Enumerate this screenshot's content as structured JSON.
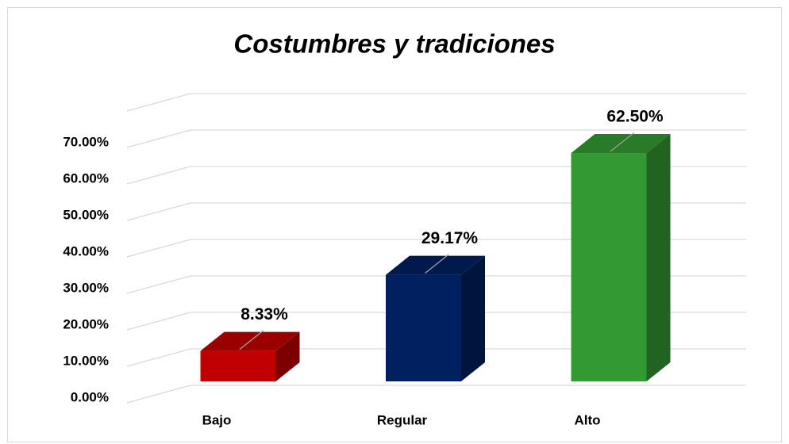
{
  "chart_data": {
    "type": "bar3d",
    "title": "Costumbres y tradiciones",
    "categories": [
      "Bajo",
      "Regular",
      "Alto"
    ],
    "values": [
      8.33,
      29.17,
      62.5
    ],
    "value_labels": [
      "8.33%",
      "29.17%",
      "62.50%"
    ],
    "colors": [
      "#c00000",
      "#002060",
      "#339933"
    ],
    "ylim": [
      0,
      80
    ],
    "yticks": [
      {
        "value": 0,
        "label": "0.00%"
      },
      {
        "value": 10,
        "label": "10.00%"
      },
      {
        "value": 20,
        "label": "20.00%"
      },
      {
        "value": 30,
        "label": "30.00%"
      },
      {
        "value": 40,
        "label": "40.00%"
      },
      {
        "value": 50,
        "label": "50.00%"
      },
      {
        "value": 60,
        "label": "60.00%"
      },
      {
        "value": 70,
        "label": "70.00%"
      }
    ],
    "grid": true
  }
}
